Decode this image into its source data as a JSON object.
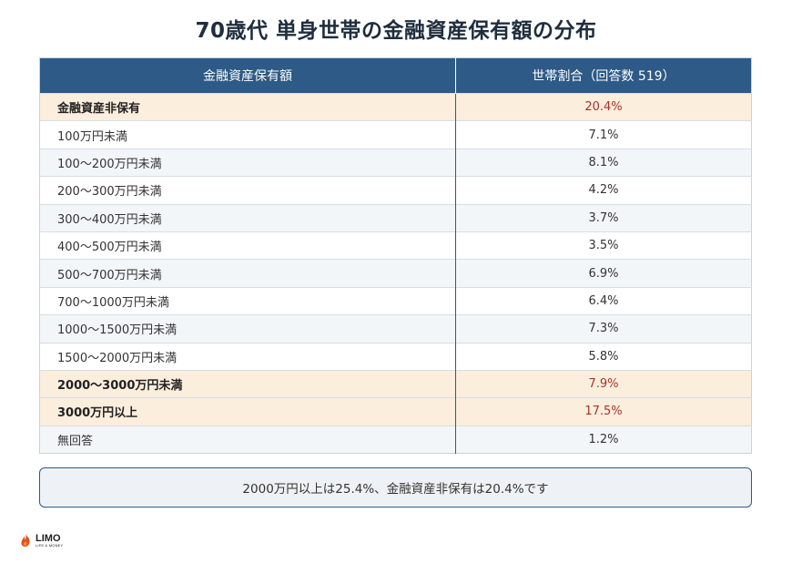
{
  "title": "70歳代 単身世帯の金融資産保有額の分布",
  "table": {
    "headers": [
      "金融資産保有額",
      "世帯割合（回答数 519）"
    ],
    "rows": [
      {
        "label": "金融資産非保有",
        "value": "20.4%",
        "highlight": true
      },
      {
        "label": "100万円未満",
        "value": "7.1%",
        "highlight": false
      },
      {
        "label": "100～200万円未満",
        "value": "8.1%",
        "highlight": false
      },
      {
        "label": "200～300万円未満",
        "value": "4.2%",
        "highlight": false
      },
      {
        "label": "300～400万円未満",
        "value": "3.7%",
        "highlight": false
      },
      {
        "label": "400～500万円未満",
        "value": "3.5%",
        "highlight": false
      },
      {
        "label": "500～700万円未満",
        "value": "6.9%",
        "highlight": false
      },
      {
        "label": "700～1000万円未満",
        "value": "6.4%",
        "highlight": false
      },
      {
        "label": "1000～1500万円未満",
        "value": "7.3%",
        "highlight": false
      },
      {
        "label": "1500～2000万円未満",
        "value": "5.8%",
        "highlight": false
      },
      {
        "label": "2000～3000万円未満",
        "value": "7.9%",
        "highlight": true
      },
      {
        "label": "3000万円以上",
        "value": "17.5%",
        "highlight": true
      },
      {
        "label": "無回答",
        "value": "1.2%",
        "highlight": false
      }
    ]
  },
  "note": "2000万円以上は25.4%、金融資産非保有は20.4%です",
  "logo": {
    "word": "LIMO",
    "sub": "LIFE & MONEY"
  },
  "colors": {
    "header": "#2d5a86",
    "highlight_bg": "#fbeedd",
    "highlight_value": "#a8332b"
  }
}
